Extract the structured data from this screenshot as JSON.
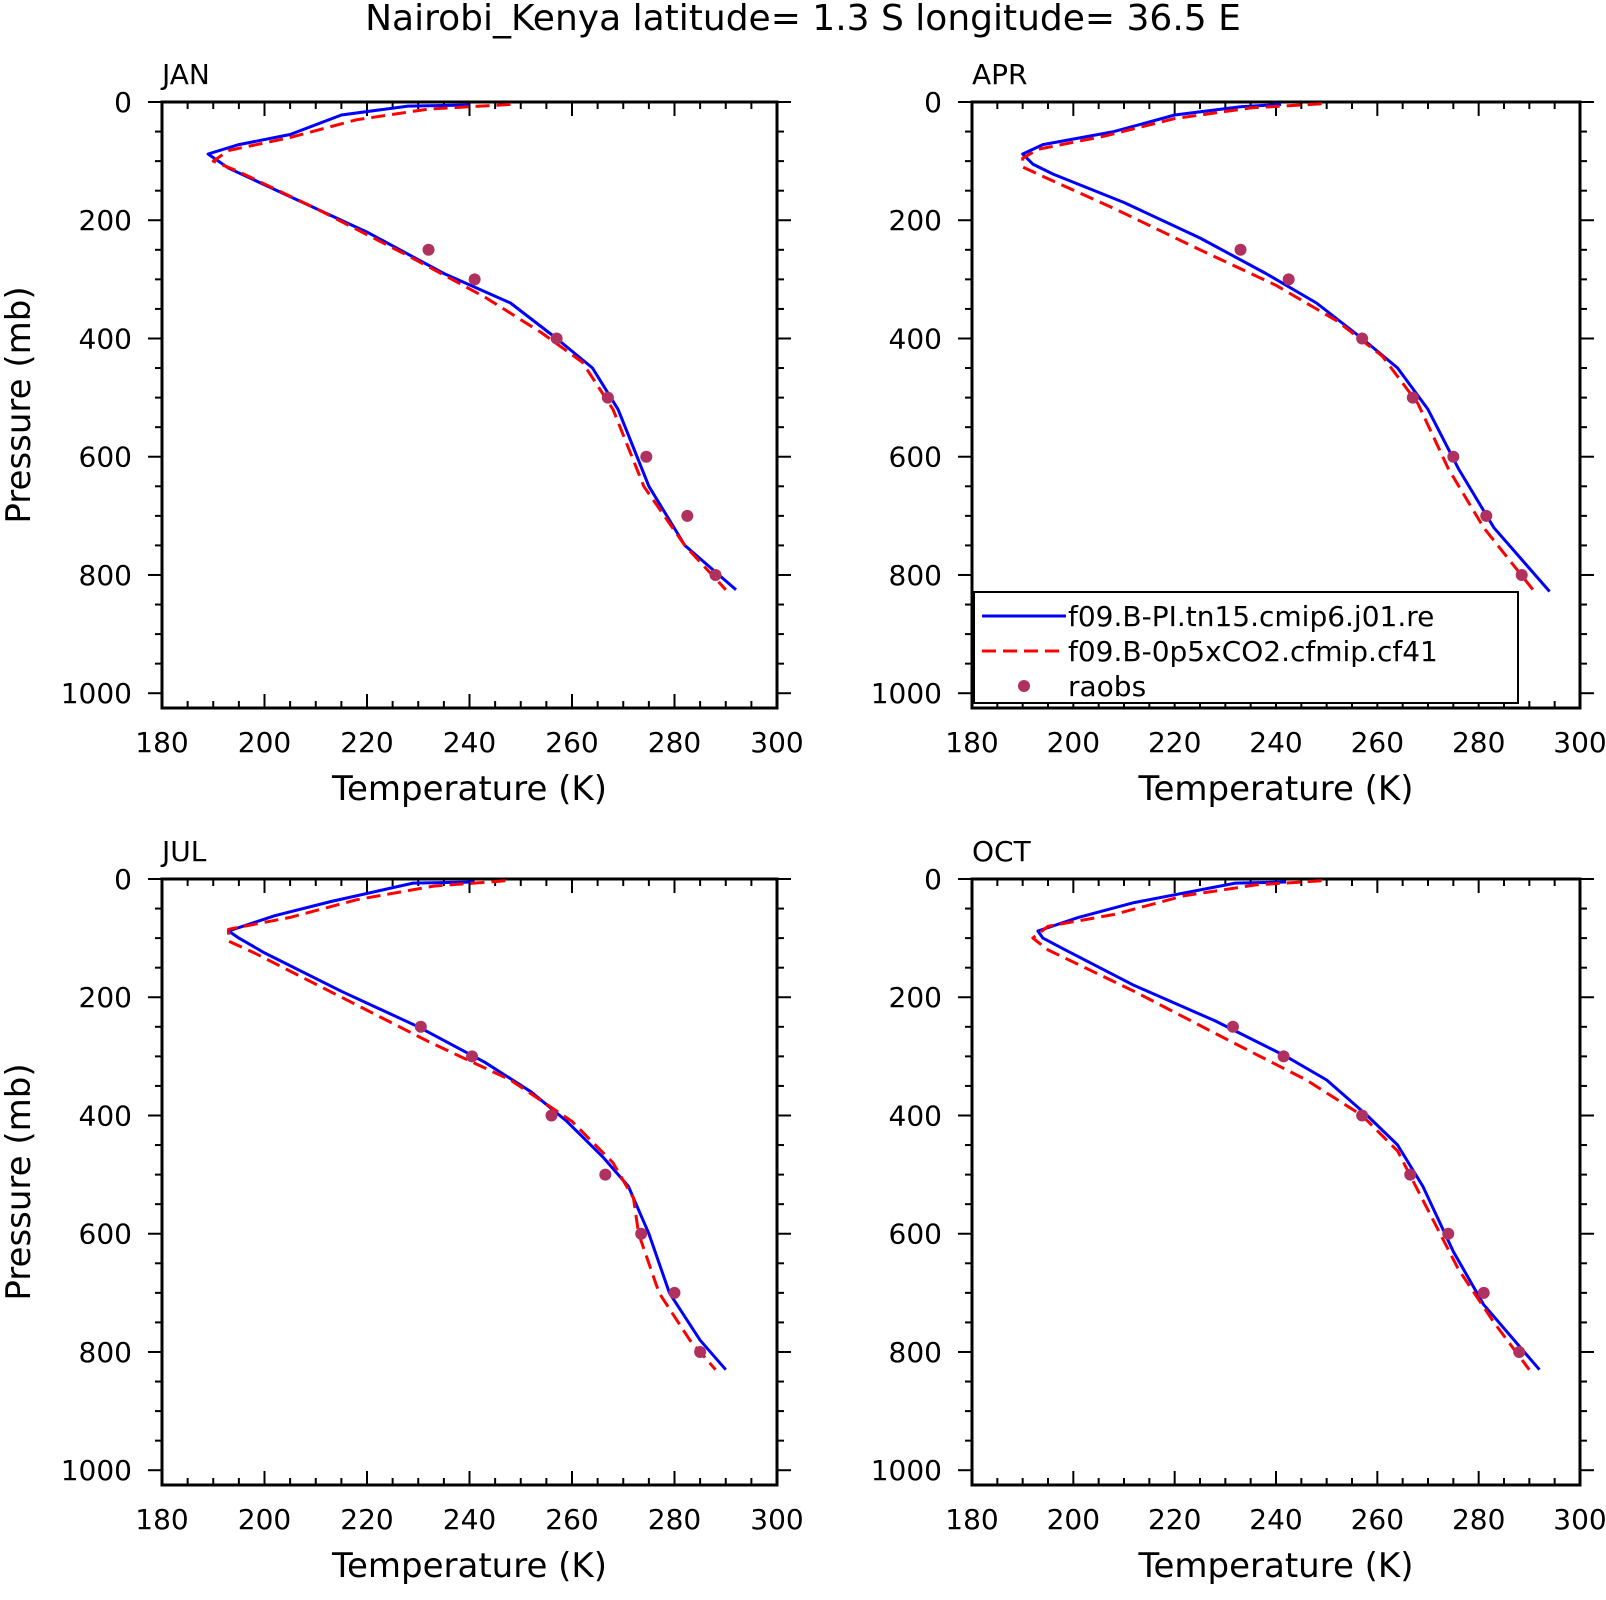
{
  "figure": {
    "title": "Nairobi_Kenya  latitude= 1.3 S longitude= 36.5 E"
  },
  "legend": {
    "entries": [
      {
        "label": "f09.B-PI.tn15.cmip6.j01.re",
        "style": "solid",
        "color": "#0000ff"
      },
      {
        "label": "f09.B-0p5xCO2.cfmip.cf41",
        "style": "dashed",
        "color": "#ff0000"
      },
      {
        "label": "raobs",
        "style": "marker",
        "color": "#b03060"
      }
    ]
  },
  "colors": {
    "model1": "#0000ff",
    "model2": "#ff0000",
    "obs": "#b03060"
  },
  "chart_data": [
    {
      "type": "line",
      "panel_title": "JAN",
      "xlabel": "Temperature (K)",
      "ylabel": "Pressure (mb)",
      "xlim": [
        180,
        300
      ],
      "ylim": [
        1025,
        0
      ],
      "xticks": [
        "180",
        "200",
        "220",
        "240",
        "260",
        "280",
        "300"
      ],
      "yticks": [
        "0",
        "200",
        "400",
        "600",
        "800",
        "1000"
      ],
      "y_inverted": true,
      "series": [
        {
          "name": "f09.B-PI.tn15.cmip6.j01.re",
          "style": "solid",
          "x": [
            240,
            228,
            215,
            205,
            195,
            189,
            193,
            205,
            220,
            235,
            248,
            257,
            264,
            269,
            275,
            282,
            292
          ],
          "y": [
            5,
            7,
            22,
            55,
            72,
            88,
            112,
            160,
            220,
            290,
            340,
            400,
            450,
            520,
            650,
            750,
            825
          ]
        },
        {
          "name": "f09.B-0p5xCO2.cfmip.cf41",
          "style": "dashed",
          "x": [
            248,
            232,
            218,
            205,
            193,
            190,
            195,
            210,
            228,
            243,
            254,
            262,
            268,
            274,
            282,
            290
          ],
          "y": [
            4,
            12,
            30,
            60,
            82,
            100,
            118,
            180,
            260,
            330,
            390,
            440,
            520,
            650,
            750,
            825
          ]
        },
        {
          "name": "raobs",
          "style": "marker",
          "x": [
            232,
            241,
            257,
            267,
            274.5,
            282.5,
            288
          ],
          "y": [
            250,
            300,
            400,
            500,
            600,
            700,
            800
          ]
        }
      ]
    },
    {
      "type": "line",
      "panel_title": "APR",
      "xlabel": "Temperature (K)",
      "ylabel": "",
      "xlim": [
        180,
        300
      ],
      "ylim": [
        1025,
        0
      ],
      "xticks": [
        "180",
        "200",
        "220",
        "240",
        "260",
        "280",
        "300"
      ],
      "yticks": [
        "0",
        "200",
        "400",
        "600",
        "800",
        "1000"
      ],
      "y_inverted": true,
      "series": [
        {
          "name": "f09.B-PI.tn15.cmip6.j01.re",
          "style": "solid",
          "x": [
            241,
            233,
            220,
            208,
            194,
            190,
            192,
            196,
            210,
            225,
            238,
            248,
            257,
            264,
            270,
            276,
            283,
            294
          ],
          "y": [
            4,
            8,
            22,
            50,
            72,
            88,
            105,
            122,
            170,
            230,
            290,
            340,
            400,
            450,
            520,
            620,
            720,
            828
          ]
        },
        {
          "name": "f09.B-0p5xCO2.cfmip.cf41",
          "style": "dashed",
          "x": [
            249,
            235,
            220,
            206,
            193,
            190,
            190,
            193,
            208,
            225,
            240,
            252,
            261,
            268,
            274,
            281,
            291
          ],
          "y": [
            3,
            10,
            28,
            58,
            80,
            95,
            110,
            122,
            180,
            250,
            310,
            370,
            430,
            510,
            620,
            720,
            828
          ]
        },
        {
          "name": "raobs",
          "style": "marker",
          "x": [
            233,
            242.5,
            257,
            267,
            275,
            281.5,
            288.5
          ],
          "y": [
            250,
            300,
            400,
            500,
            600,
            700,
            800
          ]
        }
      ]
    },
    {
      "type": "line",
      "panel_title": "JUL",
      "xlabel": "Temperature (K)",
      "ylabel": "Pressure (mb)",
      "xlim": [
        180,
        300
      ],
      "ylim": [
        1025,
        0
      ],
      "xticks": [
        "180",
        "200",
        "220",
        "240",
        "260",
        "280",
        "300"
      ],
      "yticks": [
        "0",
        "200",
        "400",
        "600",
        "800",
        "1000"
      ],
      "y_inverted": true,
      "series": [
        {
          "name": "f09.B-PI.tn15.cmip6.j01.re",
          "style": "solid",
          "x": [
            241,
            229,
            213,
            202,
            193,
            195,
            200,
            215,
            230,
            243,
            252,
            259,
            266,
            271,
            275,
            279,
            285,
            290
          ],
          "y": [
            5,
            7,
            38,
            62,
            88,
            100,
            125,
            190,
            250,
            310,
            360,
            410,
            470,
            520,
            600,
            700,
            780,
            830
          ]
        },
        {
          "name": "f09.B-0p5xCO2.cfmip.cf41",
          "style": "dashed",
          "x": [
            247,
            233,
            218,
            205,
            193,
            193,
            198,
            215,
            232,
            248,
            260,
            268,
            272,
            273,
            277,
            283,
            288
          ],
          "y": [
            3,
            12,
            35,
            65,
            85,
            105,
            125,
            200,
            275,
            340,
            410,
            480,
            540,
            600,
            700,
            780,
            830
          ]
        },
        {
          "name": "raobs",
          "style": "marker",
          "x": [
            230.5,
            240.5,
            256,
            266.5,
            273.5,
            280,
            285
          ],
          "y": [
            250,
            300,
            400,
            500,
            600,
            700,
            800
          ]
        }
      ]
    },
    {
      "type": "line",
      "panel_title": "OCT",
      "xlabel": "Temperature (K)",
      "ylabel": "",
      "xlim": [
        180,
        300
      ],
      "ylim": [
        1025,
        0
      ],
      "xticks": [
        "180",
        "200",
        "220",
        "240",
        "260",
        "280",
        "300"
      ],
      "yticks": [
        "0",
        "200",
        "400",
        "600",
        "800",
        "1000"
      ],
      "y_inverted": true,
      "series": [
        {
          "name": "f09.B-PI.tn15.cmip6.j01.re",
          "style": "solid",
          "x": [
            242,
            232,
            212,
            201,
            193,
            194,
            198,
            212,
            228,
            242,
            250,
            258,
            264,
            269,
            275,
            281,
            292
          ],
          "y": [
            5,
            7,
            40,
            65,
            88,
            100,
            118,
            180,
            240,
            300,
            340,
            400,
            450,
            520,
            630,
            720,
            830
          ]
        },
        {
          "name": "f09.B-0p5xCO2.cfmip.cf41",
          "style": "dashed",
          "x": [
            249,
            236,
            222,
            208,
            195,
            192,
            195,
            212,
            230,
            246,
            257,
            264,
            270,
            276,
            283,
            290
          ],
          "y": [
            3,
            10,
            28,
            60,
            80,
            100,
            120,
            190,
            270,
            340,
            400,
            460,
            560,
            660,
            750,
            830
          ]
        },
        {
          "name": "raobs",
          "style": "marker",
          "x": [
            231.5,
            241.5,
            257,
            266.5,
            274,
            281,
            288
          ],
          "y": [
            250,
            300,
            400,
            500,
            600,
            700,
            800
          ]
        }
      ]
    }
  ]
}
